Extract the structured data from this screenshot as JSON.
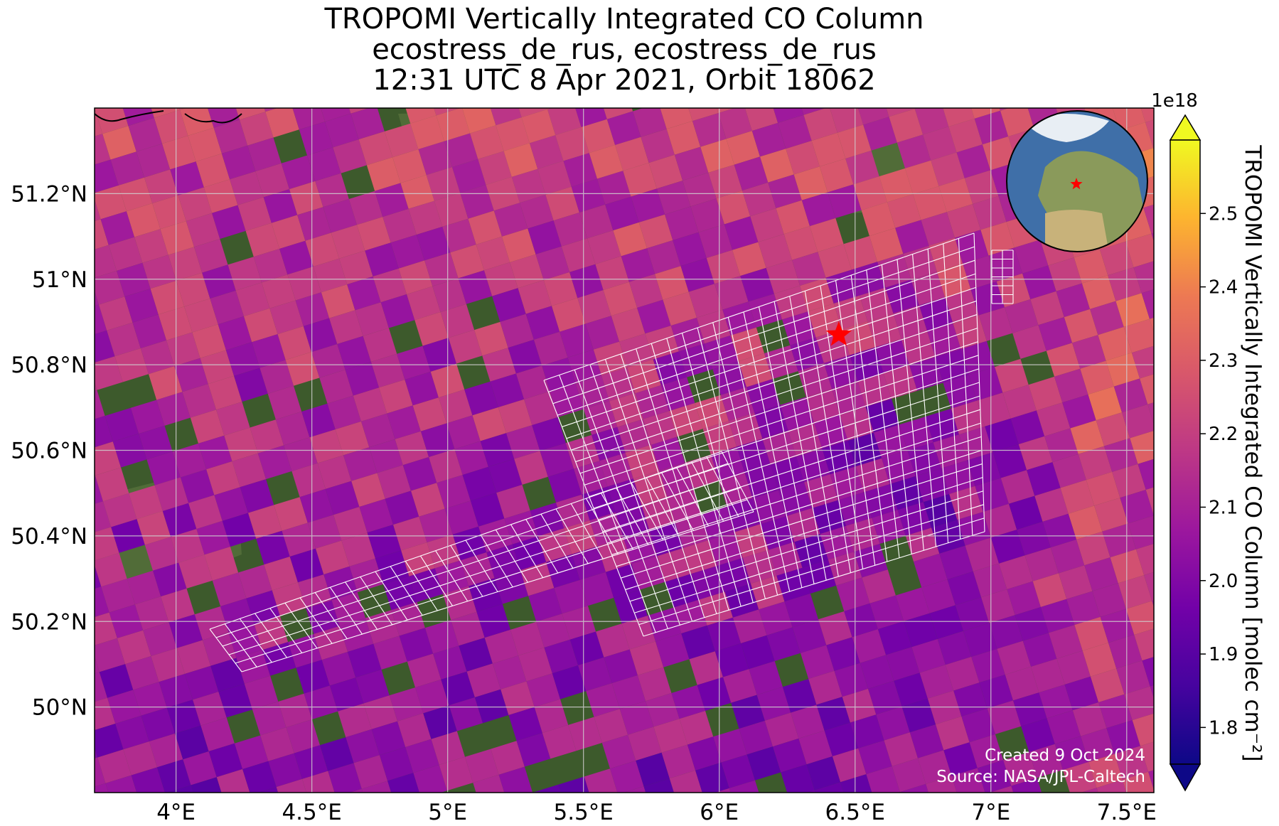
{
  "title": {
    "line1": "TROPOMI Vertically Integrated CO Column",
    "line2": "ecostress_de_rus, ecostress_de_rus",
    "line3": "12:31 UTC 8 Apr 2021, Orbit 18062"
  },
  "map": {
    "lon_range": [
      3.7,
      7.6
    ],
    "lat_range": [
      49.8,
      51.4
    ],
    "lon_ticks": [
      4,
      4.5,
      5,
      5.5,
      6,
      6.5,
      7,
      7.5
    ],
    "lon_tick_labels": [
      "4°E",
      "4.5°E",
      "5°E",
      "5.5°E",
      "6°E",
      "6.5°E",
      "7°E",
      "7.5°E"
    ],
    "lat_ticks": [
      51.2,
      51.0,
      50.8,
      50.6,
      50.4,
      50.2,
      50.0
    ],
    "lat_tick_labels": [
      "51.2°N",
      "51°N",
      "50.8°N",
      "50.6°N",
      "50.4°N",
      "50.2°N",
      "50°N"
    ],
    "grid": true,
    "site_marker": {
      "lon": 6.44,
      "lat": 50.87,
      "symbol": "star",
      "color": "#ff0000"
    },
    "globe_inset": {
      "position": "top-right",
      "marker_color": "#ff0000"
    },
    "overlay_color": "#ffffff"
  },
  "credit": {
    "line1": "Created 9 Oct 2024",
    "line2": "Source: NASA/JPL-Caltech"
  },
  "colorbar": {
    "label": "TROPOMI Vertically Integrated CO Column [molec cm⁻²]",
    "multiplier": "1e18",
    "min": 1.75,
    "max": 2.6,
    "ticks": [
      "1.8",
      "1.9",
      "2.0",
      "2.1",
      "2.2",
      "2.3",
      "2.4",
      "2.5"
    ],
    "tick_values": [
      1.8,
      1.9,
      2.0,
      2.1,
      2.2,
      2.3,
      2.4,
      2.5
    ],
    "colormap": "plasma",
    "extend": "both"
  }
}
